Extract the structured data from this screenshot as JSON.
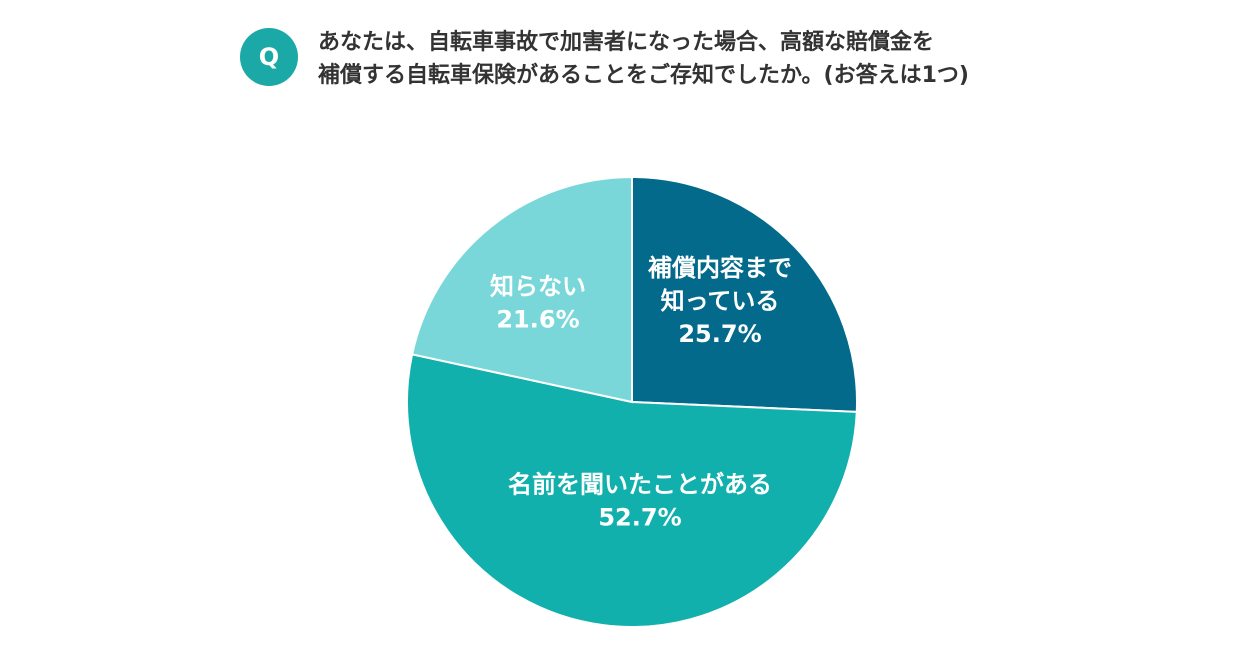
{
  "question": {
    "badge": "Q",
    "line1": "あなたは、自転車事故で加害者になった場合、高額な賠償金を",
    "line2": "補償する自転車保険があることをご存知でしたか。(お答えは1つ)"
  },
  "chart_data": {
    "type": "pie",
    "unit": "%",
    "slices": [
      {
        "label_lines": [
          "補償内容まで",
          "知っている"
        ],
        "value": 25.7,
        "value_text": "25.7%",
        "color": "#036a8b"
      },
      {
        "label_lines": [
          "名前を聞いたことがある"
        ],
        "value": 52.7,
        "value_text": "52.7%",
        "color": "#12b0ad"
      },
      {
        "label_lines": [
          "知らない"
        ],
        "value": 21.6,
        "value_text": "21.6%",
        "color": "#79d7da"
      }
    ],
    "start_angle": "12 o'clock",
    "direction": "clockwise"
  }
}
